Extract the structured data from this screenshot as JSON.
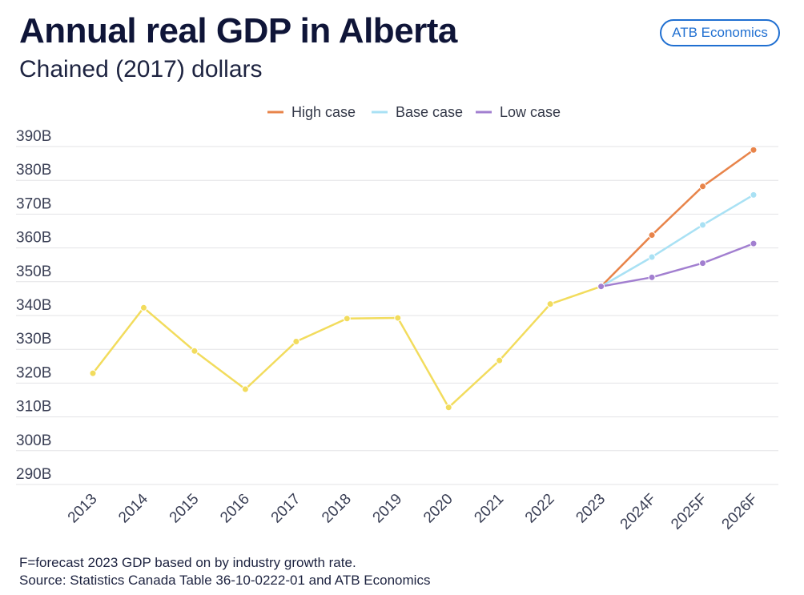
{
  "header": {
    "title": "Annual real GDP in Alberta",
    "subtitle": "Chained (2017) dollars",
    "brand": "ATB Economics"
  },
  "footer": {
    "line1": "F=forecast  2023 GDP based on by industry growth rate.",
    "line2": "Source: Statistics Canada Table 36-10-0222-01 and ATB Economics"
  },
  "chart_data": {
    "type": "line",
    "ylim": [
      290,
      390
    ],
    "yticks": [
      290,
      300,
      310,
      320,
      330,
      340,
      350,
      360,
      370,
      380,
      390
    ],
    "ytick_labels": [
      "290B",
      "300B",
      "310B",
      "320B",
      "330B",
      "340B",
      "350B",
      "360B",
      "370B",
      "380B",
      "390B"
    ],
    "grid": true,
    "legend_position": "top-center",
    "categories": [
      "2013",
      "2014",
      "2015",
      "2016",
      "2017",
      "2018",
      "2019",
      "2020",
      "2021",
      "2022",
      "2023",
      "2024F",
      "2025F",
      "2026F"
    ],
    "historical": {
      "color": "#f2dc5d",
      "x": [
        "2013",
        "2014",
        "2015",
        "2016",
        "2017",
        "2018",
        "2019",
        "2020",
        "2021",
        "2022",
        "2023"
      ],
      "values": [
        322.9,
        342.3,
        329.5,
        318.2,
        332.3,
        339.1,
        339.3,
        312.8,
        326.7,
        343.4,
        348.6
      ]
    },
    "series": [
      {
        "name": "High case",
        "color": "#e8844a",
        "x": [
          "2023",
          "2024F",
          "2025F",
          "2026F"
        ],
        "values": [
          348.6,
          363.8,
          378.2,
          389.0
        ]
      },
      {
        "name": "Base case",
        "color": "#a9e1f4",
        "x": [
          "2023",
          "2024F",
          "2025F",
          "2026F"
        ],
        "values": [
          348.6,
          357.3,
          366.8,
          375.7
        ]
      },
      {
        "name": "Low case",
        "color": "#a27fd0",
        "x": [
          "2023",
          "2024F",
          "2025F",
          "2026F"
        ],
        "values": [
          348.6,
          351.3,
          355.5,
          361.3
        ]
      }
    ]
  }
}
